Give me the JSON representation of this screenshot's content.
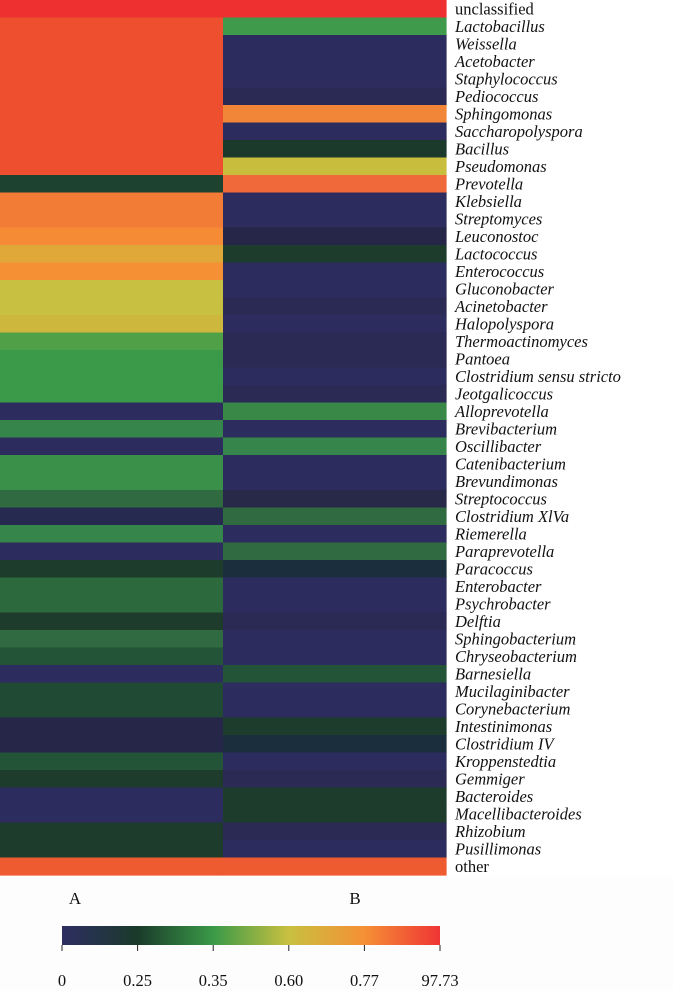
{
  "chart_data": {
    "type": "heatmap",
    "columns": [
      "A",
      "B"
    ],
    "colorbar": {
      "ticks": [
        "0",
        "0.25",
        "0.35",
        "0.60",
        "0.77",
        "97.73"
      ],
      "colors": [
        "#2e2e62",
        "#1a3a2a",
        "#3a9a48",
        "#c8c040",
        "#f59035",
        "#ef3535"
      ]
    },
    "rows": [
      {
        "label": "unclassified",
        "italic": false,
        "a": "#ef3030",
        "b": "#ef3030"
      },
      {
        "label": "Lactobacillus",
        "italic": true,
        "a": "#ee4f2e",
        "b": "#3f9b4b"
      },
      {
        "label": "Weissella",
        "italic": true,
        "a": "#ee4f2e",
        "b": "#2d2c5e"
      },
      {
        "label": "Acetobacter",
        "italic": true,
        "a": "#ee4f2e",
        "b": "#2d2c5e"
      },
      {
        "label": "Staphylococcus",
        "italic": true,
        "a": "#ee4f2e",
        "b": "#2d2c5e"
      },
      {
        "label": "Pediococcus",
        "italic": true,
        "a": "#ee4f2e",
        "b": "#2b2a55"
      },
      {
        "label": "Sphingomonas",
        "italic": true,
        "a": "#ee4f2e",
        "b": "#f28638"
      },
      {
        "label": "Saccharopolyspora",
        "italic": true,
        "a": "#ee4f2e",
        "b": "#2d2c5e"
      },
      {
        "label": "Bacillus",
        "italic": true,
        "a": "#ee4f2e",
        "b": "#1c3a2c"
      },
      {
        "label": "Pseudomonas",
        "italic": true,
        "a": "#ee4f2e",
        "b": "#c9bd3e"
      },
      {
        "label": "Prevotella",
        "italic": true,
        "a": "#1e4230",
        "b": "#f0693a"
      },
      {
        "label": "Klebsiella",
        "italic": true,
        "a": "#f27b35",
        "b": "#2d2c5e"
      },
      {
        "label": "Streptomyces",
        "italic": true,
        "a": "#f27b35",
        "b": "#2d2c5e"
      },
      {
        "label": "Leuconostoc",
        "italic": true,
        "a": "#f58b35",
        "b": "#252648"
      },
      {
        "label": "Lactococcus",
        "italic": true,
        "a": "#e0a838",
        "b": "#1d3c2c"
      },
      {
        "label": "Enterococcus",
        "italic": true,
        "a": "#f59035",
        "b": "#2d2c5e"
      },
      {
        "label": "Gluconobacter",
        "italic": true,
        "a": "#c8c040",
        "b": "#2d2c5e"
      },
      {
        "label": "Acinetobacter",
        "italic": true,
        "a": "#c8c040",
        "b": "#2b2a55"
      },
      {
        "label": "Halopolyspora",
        "italic": true,
        "a": "#cdb83d",
        "b": "#2d2c5e"
      },
      {
        "label": "Thermoactinomyces",
        "italic": true,
        "a": "#4fa046",
        "b": "#2b2a55"
      },
      {
        "label": "Pantoea",
        "italic": true,
        "a": "#3a9a4a",
        "b": "#2b2a55"
      },
      {
        "label": "Clostridium sensu stricto",
        "italic": true,
        "a": "#3a9a4a",
        "b": "#2d2c5e"
      },
      {
        "label": "Jeotgalicoccus",
        "italic": true,
        "a": "#3a9a4a",
        "b": "#2b2a55"
      },
      {
        "label": "Alloprevotella",
        "italic": true,
        "a": "#2d2c5e",
        "b": "#3a8848"
      },
      {
        "label": "Brevibacterium",
        "italic": true,
        "a": "#36854a",
        "b": "#2d2c5e"
      },
      {
        "label": "Oscillibacter",
        "italic": true,
        "a": "#2d2c5e",
        "b": "#36854a"
      },
      {
        "label": "Catenibacterium",
        "italic": true,
        "a": "#3a9048",
        "b": "#2d2c5e"
      },
      {
        "label": "Brevundimonas",
        "italic": true,
        "a": "#3a9048",
        "b": "#2d2c5e"
      },
      {
        "label": "Streptococcus",
        "italic": true,
        "a": "#2f6a40",
        "b": "#282848"
      },
      {
        "label": "Clostridium XlVa",
        "italic": true,
        "a": "#262a50",
        "b": "#2f6a40"
      },
      {
        "label": "Riemerella",
        "italic": true,
        "a": "#36854a",
        "b": "#2d2c5e"
      },
      {
        "label": "Paraprevotella",
        "italic": true,
        "a": "#2d2c5e",
        "b": "#2f6a40"
      },
      {
        "label": "Paracoccus",
        "italic": true,
        "a": "#1d3c2c",
        "b": "#1b2e3e"
      },
      {
        "label": "Enterobacter",
        "italic": true,
        "a": "#2c6a3e",
        "b": "#2d2c5e"
      },
      {
        "label": "Psychrobacter",
        "italic": true,
        "a": "#2c6a3e",
        "b": "#2d2c5e"
      },
      {
        "label": "Delftia",
        "italic": true,
        "a": "#1d3c2c",
        "b": "#2b2a55"
      },
      {
        "label": "Sphingobacterium",
        "italic": true,
        "a": "#2f6a40",
        "b": "#2d2c5e"
      },
      {
        "label": "Chryseobacterium",
        "italic": true,
        "a": "#245438",
        "b": "#2d2c5e"
      },
      {
        "label": "Barnesiella",
        "italic": true,
        "a": "#2d2c5e",
        "b": "#245438"
      },
      {
        "label": "Mucilaginibacter",
        "italic": true,
        "a": "#214a34",
        "b": "#2d2c5e"
      },
      {
        "label": "Corynebacterium",
        "italic": true,
        "a": "#214a34",
        "b": "#2d2c5e"
      },
      {
        "label": "Intestinimonas",
        "italic": true,
        "a": "#252648",
        "b": "#1d3c2c"
      },
      {
        "label": "Clostridium IV",
        "italic": true,
        "a": "#252648",
        "b": "#1b2e3e"
      },
      {
        "label": "Kroppenstedtia",
        "italic": true,
        "a": "#245438",
        "b": "#2d2c5e"
      },
      {
        "label": "Gemmiger",
        "italic": true,
        "a": "#1d3c2c",
        "b": "#2b2a55"
      },
      {
        "label": "Bacteroides",
        "italic": true,
        "a": "#2d2c5e",
        "b": "#1d3c2c"
      },
      {
        "label": "Macellibacteroides",
        "italic": true,
        "a": "#2d2c5e",
        "b": "#1d3c2c"
      },
      {
        "label": "Rhizobium",
        "italic": true,
        "a": "#1d3c2c",
        "b": "#2b2a55"
      },
      {
        "label": "Pusillimonas",
        "italic": true,
        "a": "#1d3c2c",
        "b": "#2d2c5e"
      },
      {
        "label": "other",
        "italic": false,
        "a": "#ef5b30",
        "b": "#ef5b30"
      }
    ]
  }
}
